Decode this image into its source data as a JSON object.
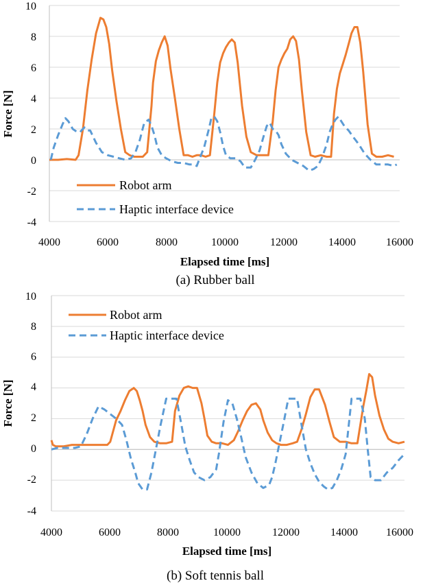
{
  "chart_data": [
    {
      "type": "line",
      "caption": "(a) Rubber ball",
      "xlabel": "Elapsed time [ms]",
      "ylabel": "Force [N]",
      "xlim": [
        4000,
        16000
      ],
      "ylim": [
        -4,
        10
      ],
      "xticks": [
        "4000",
        "6000",
        "8000",
        "10000",
        "12000",
        "14000",
        "16000"
      ],
      "yticks": [
        "-4",
        "-2",
        "0",
        "2",
        "4",
        "6",
        "8",
        "10"
      ],
      "grid": "horizontal",
      "legend": "bottom-left",
      "series": [
        {
          "name": "Robot arm",
          "color": "#ED7D31",
          "style": "solid",
          "x": [
            4000,
            4300,
            4600,
            4900,
            5000,
            5150,
            5300,
            5450,
            5600,
            5750,
            5850,
            5950,
            6050,
            6150,
            6300,
            6450,
            6600,
            6750,
            6900,
            7050,
            7200,
            7350,
            7500,
            7550,
            7650,
            7750,
            7850,
            7950,
            8050,
            8150,
            8300,
            8450,
            8600,
            8750,
            8900,
            9050,
            9200,
            9350,
            9500,
            9650,
            9750,
            9850,
            9950,
            10050,
            10150,
            10250,
            10350,
            10450,
            10600,
            10750,
            10900,
            11100,
            11300,
            11500,
            11650,
            11750,
            11850,
            11950,
            12050,
            12150,
            12250,
            12350,
            12450,
            12550,
            12650,
            12800,
            12950,
            13100,
            13300,
            13500,
            13650,
            13750,
            13850,
            13950,
            14050,
            14150,
            14250,
            14350,
            14450,
            14550,
            14650,
            14750,
            14900,
            15050,
            15200,
            15400,
            15600,
            15800
          ],
          "y": [
            0,
            0,
            0.05,
            0,
            0.3,
            2.0,
            4.5,
            6.5,
            8.2,
            9.2,
            9.1,
            8.6,
            7.5,
            5.8,
            3.8,
            2.0,
            0.5,
            0.3,
            0.2,
            0.2,
            0.2,
            0.5,
            3.5,
            5.0,
            6.4,
            7.1,
            7.6,
            8.0,
            7.4,
            5.9,
            4.0,
            2.0,
            0.3,
            0.3,
            0.2,
            0.3,
            0.3,
            0.2,
            0.3,
            3.0,
            5.0,
            6.3,
            6.9,
            7.3,
            7.6,
            7.8,
            7.6,
            6.3,
            3.5,
            1.5,
            0.5,
            0.3,
            0.3,
            0.3,
            2.5,
            4.5,
            6.0,
            6.5,
            6.9,
            7.2,
            7.8,
            8.0,
            7.7,
            6.5,
            4.5,
            1.8,
            0.3,
            0.2,
            0.3,
            0.2,
            0.2,
            3.0,
            4.6,
            5.6,
            6.2,
            6.8,
            7.5,
            8.2,
            8.6,
            8.6,
            7.6,
            5.7,
            2.3,
            0.4,
            0.2,
            0.2,
            0.3,
            0.2
          ]
        },
        {
          "name": "Haptic interface device",
          "color": "#5B9BD5",
          "style": "dashed",
          "x": [
            4050,
            4150,
            4300,
            4450,
            4550,
            4650,
            4800,
            4950,
            5050,
            5200,
            5300,
            5400,
            5600,
            5800,
            6000,
            6200,
            6400,
            6600,
            6800,
            6950,
            7100,
            7250,
            7400,
            7500,
            7600,
            7700,
            7850,
            8000,
            8200,
            8400,
            8600,
            8800,
            8950,
            9050,
            9150,
            9300,
            9450,
            9550,
            9650,
            9750,
            9850,
            9950,
            10050,
            10200,
            10400,
            10550,
            10700,
            10900,
            11050,
            11200,
            11350,
            11450,
            11550,
            11650,
            11750,
            11850,
            11950,
            12100,
            12300,
            12500,
            12700,
            12900,
            13050,
            13200,
            13350,
            13500,
            13600,
            13700,
            13800,
            13900,
            14000,
            14100,
            14250,
            14400,
            14600,
            14800,
            15000,
            15200,
            15400,
            15600,
            15800,
            15900
          ],
          "y": [
            0,
            0.8,
            1.6,
            2.3,
            2.7,
            2.5,
            2.0,
            1.8,
            1.8,
            2.1,
            1.9,
            1.9,
            1.1,
            0.5,
            0.3,
            0.2,
            0.1,
            0.0,
            0.1,
            0.5,
            1.3,
            2.4,
            2.6,
            2.2,
            1.6,
            0.8,
            0.3,
            0.1,
            -0.1,
            -0.2,
            -0.2,
            -0.3,
            -0.3,
            -0.4,
            0.1,
            0.8,
            1.9,
            2.7,
            2.8,
            2.5,
            1.8,
            0.9,
            0.3,
            0.1,
            0.1,
            -0.1,
            -0.5,
            -0.5,
            0.0,
            0.6,
            1.6,
            2.2,
            2.4,
            2.0,
            1.9,
            1.6,
            1.0,
            0.4,
            0.0,
            -0.2,
            -0.4,
            -0.7,
            -0.6,
            -0.4,
            0.2,
            1.0,
            1.8,
            2.3,
            2.6,
            2.8,
            2.5,
            2.2,
            1.9,
            1.5,
            1.0,
            0.4,
            0.0,
            -0.3,
            -0.3,
            -0.3,
            -0.4,
            -0.3
          ]
        }
      ]
    },
    {
      "type": "line",
      "caption": "(b) Soft tennis ball",
      "xlabel": "Elapsed time [ms]",
      "ylabel": "Force [N]",
      "xlim": [
        4000,
        16000
      ],
      "ylim": [
        -4,
        10
      ],
      "xticks": [
        "4000",
        "6000",
        "8000",
        "10000",
        "12000",
        "14000",
        "16000"
      ],
      "yticks": [
        "-4",
        "-2",
        "0",
        "2",
        "4",
        "6",
        "8",
        "10"
      ],
      "grid": "horizontal",
      "legend": "top-left",
      "series": [
        {
          "name": "Robot arm",
          "color": "#ED7D31",
          "style": "solid",
          "x": [
            4000,
            4050,
            4150,
            4400,
            4700,
            5000,
            5300,
            5600,
            5900,
            6000,
            6100,
            6200,
            6350,
            6500,
            6650,
            6800,
            6900,
            7000,
            7100,
            7200,
            7350,
            7500,
            7700,
            7900,
            8100,
            8200,
            8350,
            8500,
            8650,
            8800,
            8950,
            9100,
            9200,
            9300,
            9450,
            9600,
            9800,
            10000,
            10200,
            10350,
            10500,
            10650,
            10800,
            10950,
            11100,
            11200,
            11350,
            11500,
            11650,
            11800,
            12000,
            12200,
            12350,
            12500,
            12650,
            12800,
            12950,
            13100,
            13200,
            13300,
            13450,
            13600,
            13800,
            14000,
            14200,
            14400,
            14500,
            14600,
            14700,
            14800,
            14900,
            15000,
            15150,
            15300,
            15450,
            15600,
            15800,
            16000
          ],
          "y": [
            0.6,
            0.3,
            0.2,
            0.2,
            0.3,
            0.3,
            0.3,
            0.3,
            0.3,
            0.5,
            1.2,
            1.9,
            2.5,
            3.2,
            3.8,
            4.0,
            3.8,
            3.2,
            2.5,
            1.6,
            0.8,
            0.5,
            0.4,
            0.4,
            0.5,
            2.5,
            3.5,
            4.0,
            4.1,
            4.0,
            4.0,
            3.0,
            2.0,
            0.9,
            0.5,
            0.4,
            0.4,
            0.3,
            0.6,
            1.2,
            1.9,
            2.5,
            2.9,
            3.0,
            2.6,
            1.9,
            1.1,
            0.6,
            0.4,
            0.3,
            0.3,
            0.4,
            0.5,
            1.3,
            2.3,
            3.4,
            3.9,
            3.9,
            3.4,
            2.9,
            1.8,
            0.8,
            0.5,
            0.5,
            0.4,
            0.4,
            1.6,
            2.8,
            3.8,
            4.9,
            4.7,
            3.5,
            2.2,
            1.3,
            0.7,
            0.5,
            0.4,
            0.5
          ]
        },
        {
          "name": "Haptic interface device",
          "color": "#5B9BD5",
          "style": "dashed",
          "x": [
            4000,
            4200,
            4500,
            4800,
            5000,
            5200,
            5400,
            5600,
            5800,
            6000,
            6200,
            6400,
            6550,
            6700,
            6850,
            6950,
            7100,
            7250,
            7400,
            7550,
            7700,
            7900,
            8100,
            8250,
            8400,
            8550,
            8700,
            8850,
            9000,
            9200,
            9400,
            9600,
            9700,
            9850,
            10000,
            10150,
            10300,
            10450,
            10600,
            10800,
            11000,
            11200,
            11400,
            11500,
            11600,
            11750,
            11900,
            12050,
            12200,
            12350,
            12500,
            12650,
            12800,
            12950,
            13100,
            13250,
            13400,
            13550,
            13700,
            13850,
            14000,
            14100,
            14200,
            14350,
            14500,
            14650,
            14750,
            14850,
            15000,
            15200,
            15400,
            15600,
            15800,
            16000
          ],
          "y": [
            0.0,
            0.1,
            0.1,
            0.1,
            0.2,
            1.0,
            2.0,
            2.8,
            2.6,
            2.3,
            2.0,
            1.6,
            0.6,
            -0.6,
            -1.5,
            -2.2,
            -2.6,
            -2.6,
            -1.5,
            0.0,
            1.5,
            3.3,
            3.3,
            3.3,
            1.8,
            0.2,
            -0.7,
            -1.5,
            -1.8,
            -2.0,
            -1.8,
            -1.3,
            -0.2,
            1.8,
            3.2,
            3.0,
            2.0,
            0.8,
            -0.5,
            -1.5,
            -2.2,
            -2.5,
            -2.3,
            -1.8,
            -1.0,
            0.4,
            1.8,
            3.3,
            3.3,
            3.3,
            1.6,
            0.0,
            -0.9,
            -1.6,
            -2.1,
            -2.4,
            -2.6,
            -2.5,
            -2.0,
            -1.3,
            -0.3,
            1.5,
            3.3,
            3.3,
            3.3,
            2.0,
            0.0,
            -1.8,
            -2.0,
            -2.0,
            -1.5,
            -1.2,
            -0.7,
            -0.3
          ]
        }
      ]
    }
  ]
}
